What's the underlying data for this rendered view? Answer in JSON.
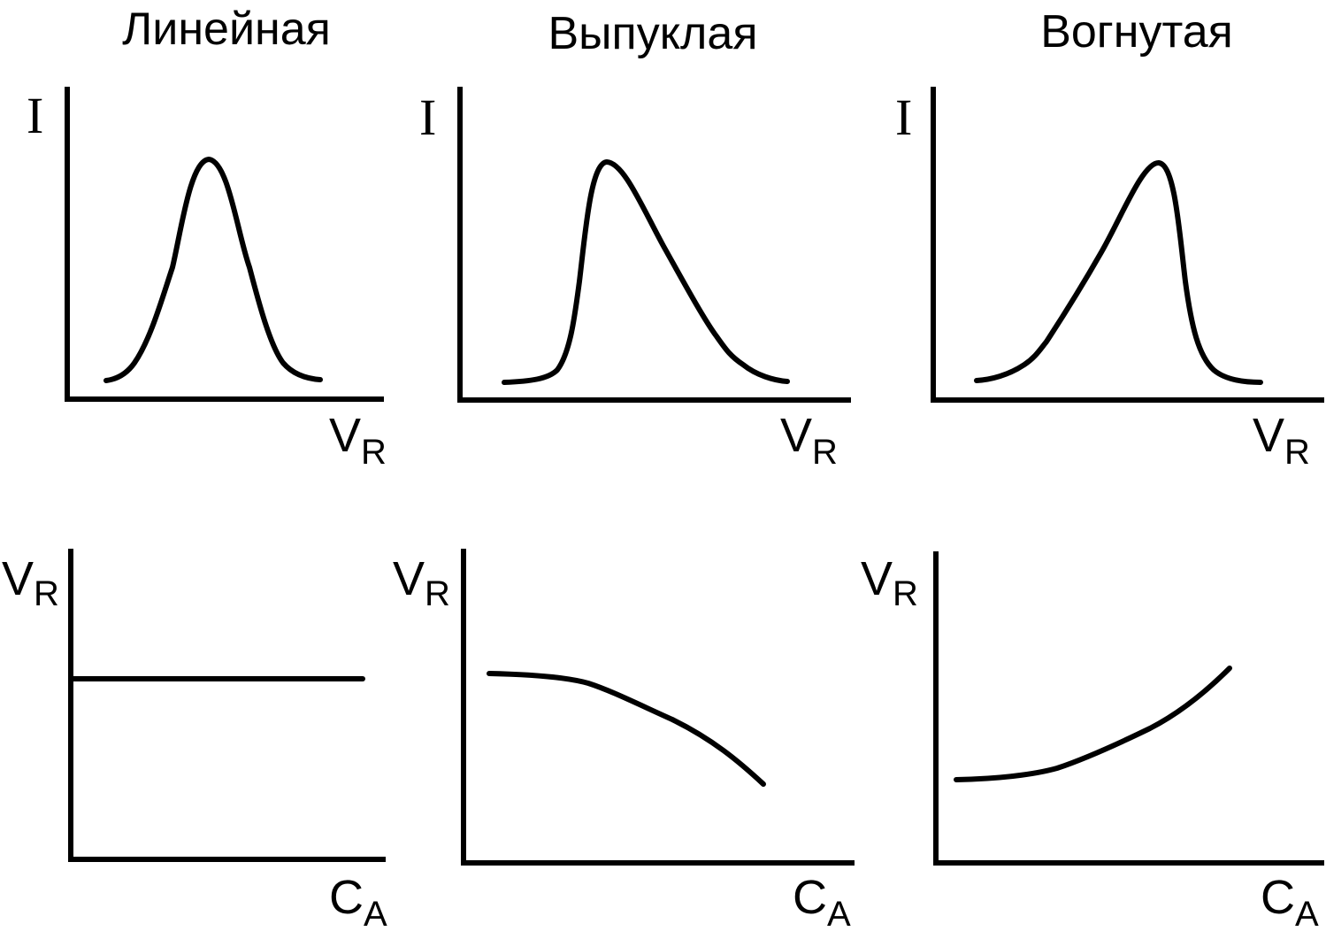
{
  "columns": [
    {
      "title": "Линейная",
      "top_plot": {
        "y_axis_label": "I",
        "x_axis_main": "V",
        "x_axis_sub": "R"
      },
      "bottom_plot": {
        "y_axis_main": "V",
        "y_axis_sub": "R",
        "x_axis_main": "C",
        "x_axis_sub": "A"
      }
    },
    {
      "title": "Выпуклая",
      "top_plot": {
        "y_axis_label": "I",
        "x_axis_main": "V",
        "x_axis_sub": "R"
      },
      "bottom_plot": {
        "y_axis_main": "V",
        "y_axis_sub": "R",
        "x_axis_main": "C",
        "x_axis_sub": "A"
      }
    },
    {
      "title": "Вогнутая",
      "top_plot": {
        "y_axis_label": "I",
        "x_axis_main": "V",
        "x_axis_sub": "R"
      },
      "bottom_plot": {
        "y_axis_main": "V",
        "y_axis_sub": "R",
        "x_axis_main": "C",
        "x_axis_sub": "A"
      }
    }
  ],
  "colors": {
    "line": "#000000",
    "background": "#ffffff"
  }
}
